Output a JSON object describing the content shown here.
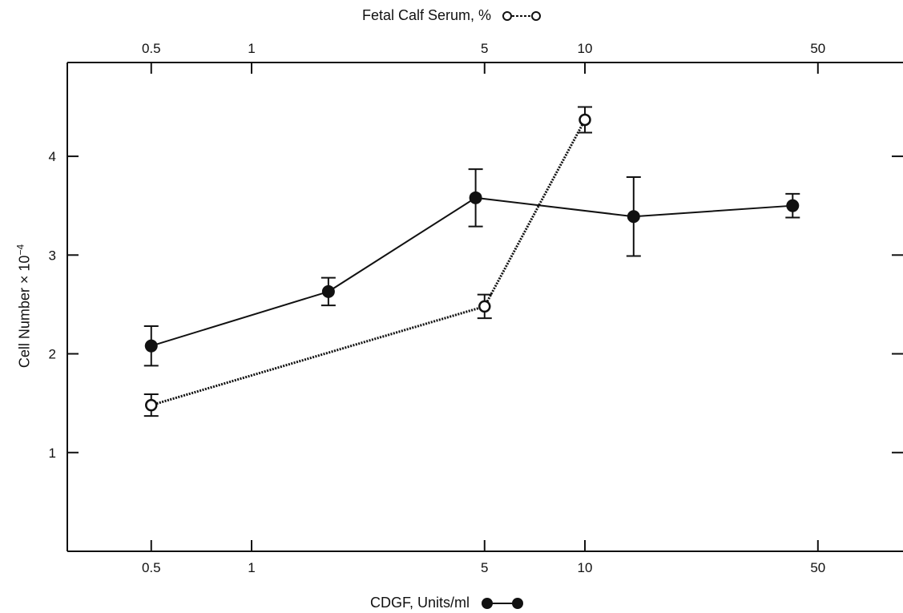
{
  "chart_data": {
    "type": "line",
    "x_scale": "log",
    "top_axis": {
      "label": "Fetal Calf Serum, %",
      "ticks": [
        0.5,
        1,
        5,
        10,
        50
      ],
      "tick_labels": [
        "0.5",
        "1",
        "5",
        "10",
        "50"
      ]
    },
    "bottom_axis": {
      "label": "CDGF, Units/ml",
      "ticks": [
        0.5,
        1,
        5,
        10,
        50
      ],
      "tick_labels": [
        "0.5",
        "1",
        "5",
        "10",
        "50"
      ]
    },
    "y_axis": {
      "label": "Cell Number × 10",
      "label_exponent": "−4",
      "ticks": [
        1,
        2,
        3,
        4
      ],
      "tick_labels": [
        "1",
        "2",
        "3",
        "4"
      ],
      "ylim": [
        0,
        4.95
      ]
    },
    "xlim": [
      0.28,
      90
    ],
    "series": [
      {
        "legend_axis": "bottom",
        "marker": "filled-circle",
        "line": "solid",
        "color": "#111111",
        "points": [
          {
            "x": 0.5,
            "y": 2.08,
            "err": 0.2
          },
          {
            "x": 1.7,
            "y": 2.63,
            "err": 0.14
          },
          {
            "x": 4.7,
            "y": 3.58,
            "err": 0.29
          },
          {
            "x": 14,
            "y": 3.39,
            "err": 0.4
          },
          {
            "x": 42,
            "y": 3.5,
            "err": 0.12
          }
        ]
      },
      {
        "legend_axis": "top",
        "marker": "open-circle",
        "line": "dashed",
        "color": "#111111",
        "points": [
          {
            "x": 0.5,
            "y": 1.48,
            "err": 0.11
          },
          {
            "x": 5,
            "y": 2.48,
            "err": 0.12
          },
          {
            "x": 10,
            "y": 4.37,
            "err": 0.13
          }
        ]
      }
    ],
    "grid": false
  }
}
